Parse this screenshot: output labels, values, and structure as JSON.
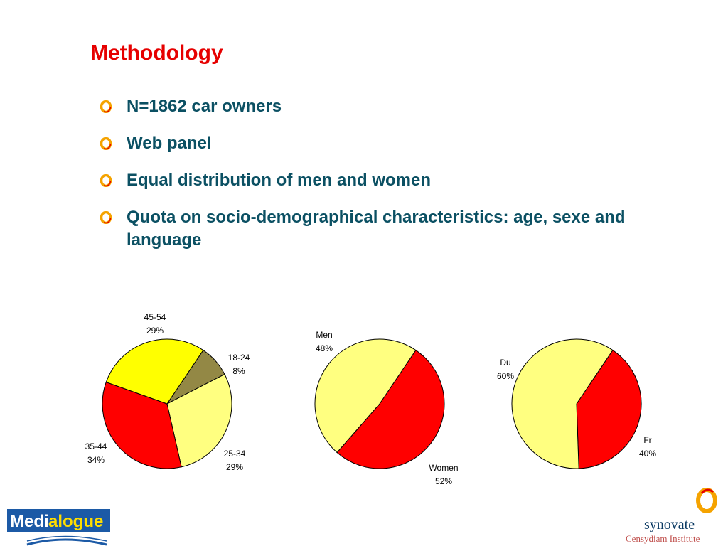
{
  "slide": {
    "title": "Methodology",
    "bullets": [
      "N=1862 car owners",
      "Web panel",
      "Equal distribution of men and women",
      "Quota on socio-demographical characteristics: age, sexe and language"
    ]
  },
  "colors": {
    "title": "#e60000",
    "bullet_text": "#0b5063",
    "pie_yellow": "#ffff00",
    "pie_light_yellow": "#ffff80",
    "pie_red": "#ff0000",
    "pie_olive": "#938845"
  },
  "chart_data": [
    {
      "type": "pie",
      "slices": [
        {
          "label": "18-24",
          "value": 8,
          "value_label": "8%",
          "color": "#938845"
        },
        {
          "label": "25-34",
          "value": 29,
          "value_label": "29%",
          "color": "#ffff80"
        },
        {
          "label": "35-44",
          "value": 34,
          "value_label": "34%",
          "color": "#ff0000"
        },
        {
          "label": "45-54",
          "value": 29,
          "value_label": "29%",
          "color": "#ffff00"
        }
      ]
    },
    {
      "type": "pie",
      "slices": [
        {
          "label": "Women",
          "value": 52,
          "value_label": "52%",
          "color": "#ff0000"
        },
        {
          "label": "Men",
          "value": 48,
          "value_label": "48%",
          "color": "#ffff80"
        }
      ]
    },
    {
      "type": "pie",
      "slices": [
        {
          "label": "Fr",
          "value": 40,
          "value_label": "40%",
          "color": "#ff0000"
        },
        {
          "label": "Du",
          "value": 60,
          "value_label": "60%",
          "color": "#ffff80"
        }
      ]
    }
  ],
  "logos": {
    "left": {
      "part1": "Medi",
      "part2": "alogue"
    },
    "right": {
      "name": "synovate",
      "tagline": "Censydiam Institute"
    }
  }
}
